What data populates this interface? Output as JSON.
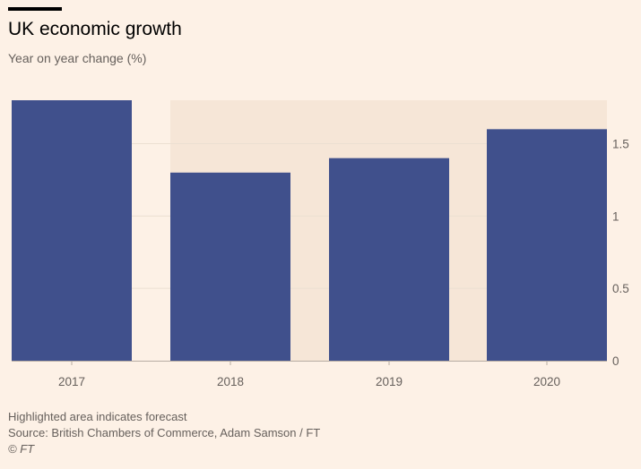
{
  "header": {
    "title": "UK economic growth",
    "subtitle": "Year on year change (%)"
  },
  "footer": {
    "note": "Highlighted area indicates forecast",
    "source": "Source: British Chambers of Commerce, Adam Samson / FT",
    "credit": "© FT"
  },
  "colors": {
    "background": "#fdf1e6",
    "bar": "#40508c",
    "forecast_band": "#f6e6d7",
    "gridline": "#ece0d2",
    "axis": "#b7ada3",
    "text": "#66605c"
  },
  "chart_data": {
    "type": "bar",
    "title": "UK economic growth",
    "subtitle": "Year on year change (%)",
    "xlabel": "",
    "ylabel": "",
    "categories": [
      "2017",
      "2018",
      "2019",
      "2020"
    ],
    "values": [
      1.8,
      1.3,
      1.4,
      1.6
    ],
    "forecast_categories": [
      "2018",
      "2019",
      "2020"
    ],
    "ylim": [
      0,
      1.8
    ],
    "yticks": [
      0,
      0.5,
      1,
      1.5
    ],
    "ytick_labels": [
      "0",
      "0.5",
      "1",
      "1.5"
    ],
    "y_axis_position": "right",
    "grid": true,
    "annotation": "Highlighted area indicates forecast"
  }
}
